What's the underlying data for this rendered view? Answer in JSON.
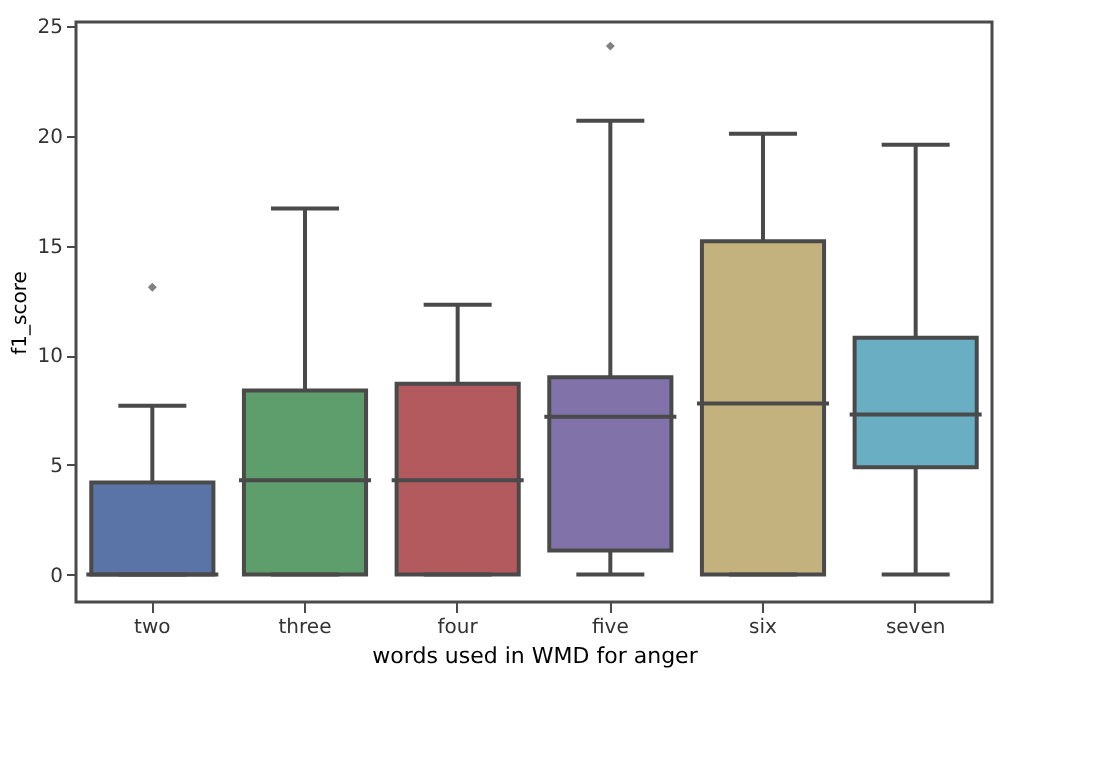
{
  "chart_data": {
    "type": "box",
    "xlabel": "words used in WMD for anger",
    "ylabel": "f1_score",
    "categories": [
      "two",
      "three",
      "four",
      "five",
      "six",
      "seven"
    ],
    "colors": [
      "#5a74a8",
      "#5d9e6c",
      "#b35a5e",
      "#8173a9",
      "#c4b27e",
      "#6aaec4"
    ],
    "boxes": [
      {
        "low": 0,
        "q1": 0,
        "median": 0,
        "q3": 4.2,
        "high": 7.7,
        "outliers": [
          13.1
        ]
      },
      {
        "low": 0,
        "q1": 0,
        "median": 4.3,
        "q3": 8.4,
        "high": 16.7
      },
      {
        "low": 0,
        "q1": 0,
        "median": 4.3,
        "q3": 8.7,
        "high": 12.3
      },
      {
        "low": 0,
        "q1": 1.1,
        "median": 7.2,
        "q3": 9.0,
        "high": 20.7,
        "outliers": [
          24.1
        ]
      },
      {
        "low": 0,
        "q1": 0,
        "median": 7.8,
        "q3": 15.2,
        "high": 20.1
      },
      {
        "low": 0,
        "q1": 4.9,
        "median": 7.3,
        "q3": 10.8,
        "high": 19.6
      }
    ],
    "ylim": [
      -1.25,
      25.2
    ],
    "yticks": [
      0,
      5,
      10,
      15,
      20,
      25
    ],
    "grid": false,
    "marker": "diamond"
  }
}
